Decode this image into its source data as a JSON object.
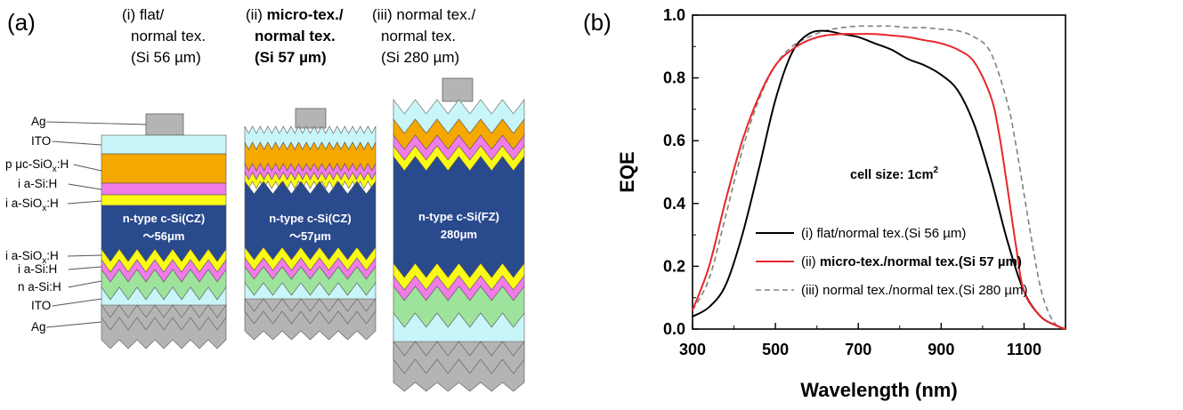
{
  "panel_a": {
    "label": "(a)",
    "columns": [
      {
        "lines": [
          "(i) flat/",
          "normal tex.",
          "(Si 56 µm)"
        ],
        "bold_from": 9,
        "wafer": [
          "n-type c-Si(CZ)",
          "～56μm"
        ]
      },
      {
        "lines": [
          "(ii) micro-tex./",
          "normal tex.",
          "(Si 57 µm)"
        ],
        "bold_from": 0,
        "wafer": [
          "n-type c-Si(CZ)",
          "～57μm"
        ]
      },
      {
        "lines": [
          "(iii) normal tex./",
          "normal tex.",
          "(Si 280 µm)"
        ],
        "bold_from": 9,
        "wafer": [
          "n-type c-Si(FZ)",
          "280μm"
        ]
      }
    ],
    "layer_labels_top": [
      {
        "text": "Ag"
      },
      {
        "text": "ITO"
      },
      {
        "main": "p μc-SiO",
        "sub": "x",
        "tail": ":H"
      },
      {
        "text": "i a-Si:H"
      },
      {
        "main": "i a-SiO",
        "sub": "x",
        "tail": ":H"
      }
    ],
    "layer_labels_bottom": [
      {
        "main": "i a-SiO",
        "sub": "x",
        "tail": ":H"
      },
      {
        "text": "i a-Si:H"
      },
      {
        "text": "n a-Si:H"
      },
      {
        "text": "ITO"
      },
      {
        "text": "Ag"
      }
    ],
    "colors": {
      "ag": "#b4b4b4",
      "ito": "#c8f5f8",
      "p_layer": "#f5a800",
      "i_asi": "#f07ce8",
      "i_asiox": "#fafa14",
      "n_asi": "#9ee39c",
      "wafer": "#2a4a8e"
    }
  },
  "panel_b": {
    "label": "(b)",
    "annotation_main": "cell size: 1cm",
    "annotation_sup": "2",
    "legend": [
      {
        "prefix": "(i) flat/normal tex.(Si 56 µm)",
        "bold": "",
        "color": "#000000",
        "dash": false
      },
      {
        "prefix": "(ii) ",
        "bold": "micro-tex./normal tex.(Si 57 µm)",
        "color": "#e8262b",
        "dash": false
      },
      {
        "prefix": "(iii) normal tex./normal tex.(Si 280 µm)",
        "bold": "",
        "color": "#808080",
        "dash": true
      }
    ]
  },
  "chart_data": {
    "type": "line",
    "xlabel": "Wavelength (nm)",
    "ylabel": "EQE",
    "xlim": [
      300,
      1200
    ],
    "ylim": [
      0,
      1.0
    ],
    "xticks": [
      300,
      500,
      700,
      900,
      1100
    ],
    "yticks": [
      0.0,
      0.2,
      0.4,
      0.6,
      0.8,
      1.0
    ],
    "series": [
      {
        "name": "(i) flat/normal tex.(Si 56 µm)",
        "color": "#000000",
        "dash": false,
        "x": [
          300,
          340,
          380,
          420,
          460,
          500,
          540,
          580,
          620,
          660,
          700,
          740,
          780,
          820,
          860,
          900,
          940,
          980,
          1020,
          1060,
          1100,
          1140,
          1180,
          1200
        ],
        "y": [
          0.04,
          0.07,
          0.14,
          0.3,
          0.51,
          0.73,
          0.88,
          0.94,
          0.95,
          0.94,
          0.93,
          0.91,
          0.89,
          0.86,
          0.84,
          0.81,
          0.76,
          0.65,
          0.48,
          0.28,
          0.12,
          0.04,
          0.01,
          0.0
        ]
      },
      {
        "name": "(ii) micro-tex./normal tex.(Si 57 µm)",
        "color": "#e8262b",
        "dash": false,
        "x": [
          300,
          340,
          380,
          420,
          460,
          500,
          540,
          580,
          620,
          660,
          700,
          740,
          780,
          820,
          860,
          900,
          940,
          980,
          1020,
          1040,
          1060,
          1080,
          1100,
          1140,
          1180,
          1200
        ],
        "y": [
          0.06,
          0.2,
          0.41,
          0.6,
          0.74,
          0.84,
          0.89,
          0.92,
          0.935,
          0.94,
          0.94,
          0.94,
          0.935,
          0.93,
          0.92,
          0.91,
          0.89,
          0.85,
          0.74,
          0.62,
          0.45,
          0.27,
          0.12,
          0.04,
          0.01,
          0.0
        ]
      },
      {
        "name": "(iii) normal tex./normal tex.(Si 280 µm)",
        "color": "#808080",
        "dash": true,
        "x": [
          300,
          340,
          380,
          420,
          460,
          500,
          540,
          580,
          620,
          660,
          700,
          740,
          780,
          820,
          860,
          900,
          940,
          980,
          1020,
          1060,
          1080,
          1100,
          1120,
          1140,
          1160,
          1180,
          1200
        ],
        "y": [
          0.06,
          0.16,
          0.36,
          0.57,
          0.73,
          0.84,
          0.9,
          0.93,
          0.95,
          0.96,
          0.965,
          0.965,
          0.965,
          0.96,
          0.96,
          0.955,
          0.95,
          0.93,
          0.88,
          0.72,
          0.59,
          0.43,
          0.27,
          0.13,
          0.05,
          0.01,
          0.0
        ]
      }
    ]
  }
}
